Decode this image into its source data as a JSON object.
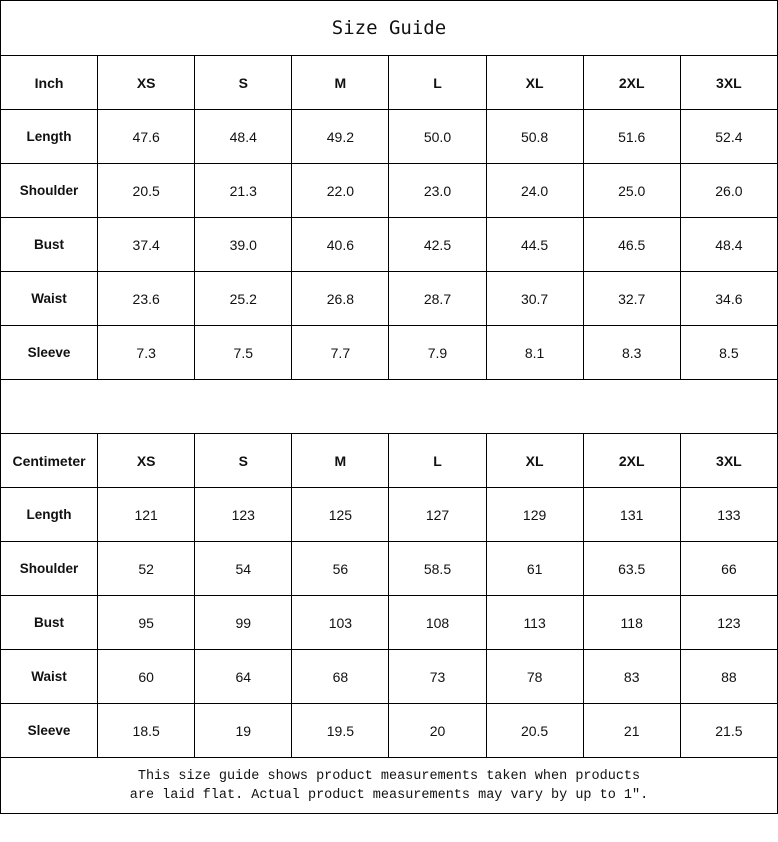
{
  "title": "Size Guide",
  "tables": [
    {
      "unit": "Inch",
      "sizes": [
        "XS",
        "S",
        "M",
        "L",
        "XL",
        "2XL",
        "3XL"
      ],
      "rows": [
        {
          "label": "Length",
          "values": [
            "47.6",
            "48.4",
            "49.2",
            "50.0",
            "50.8",
            "51.6",
            "52.4"
          ]
        },
        {
          "label": "Shoulder",
          "values": [
            "20.5",
            "21.3",
            "22.0",
            "23.0",
            "24.0",
            "25.0",
            "26.0"
          ]
        },
        {
          "label": "Bust",
          "values": [
            "37.4",
            "39.0",
            "40.6",
            "42.5",
            "44.5",
            "46.5",
            "48.4"
          ]
        },
        {
          "label": "Waist",
          "values": [
            "23.6",
            "25.2",
            "26.8",
            "28.7",
            "30.7",
            "32.7",
            "34.6"
          ]
        },
        {
          "label": "Sleeve",
          "values": [
            "7.3",
            "7.5",
            "7.7",
            "7.9",
            "8.1",
            "8.3",
            "8.5"
          ]
        }
      ]
    },
    {
      "unit": "Centimeter",
      "sizes": [
        "XS",
        "S",
        "M",
        "L",
        "XL",
        "2XL",
        "3XL"
      ],
      "rows": [
        {
          "label": "Length",
          "values": [
            "121",
            "123",
            "125",
            "127",
            "129",
            "131",
            "133"
          ]
        },
        {
          "label": "Shoulder",
          "values": [
            "52",
            "54",
            "56",
            "58.5",
            "61",
            "63.5",
            "66"
          ]
        },
        {
          "label": "Bust",
          "values": [
            "95",
            "99",
            "103",
            "108",
            "113",
            "118",
            "123"
          ]
        },
        {
          "label": "Waist",
          "values": [
            "60",
            "64",
            "68",
            "73",
            "78",
            "83",
            "88"
          ]
        },
        {
          "label": "Sleeve",
          "values": [
            "18.5",
            "19",
            "19.5",
            "20",
            "20.5",
            "21",
            "21.5"
          ]
        }
      ]
    }
  ],
  "note": {
    "line1": "This size guide shows product measurements taken when products",
    "line2": "are laid flat. Actual product measurements may vary by up to 1″."
  }
}
